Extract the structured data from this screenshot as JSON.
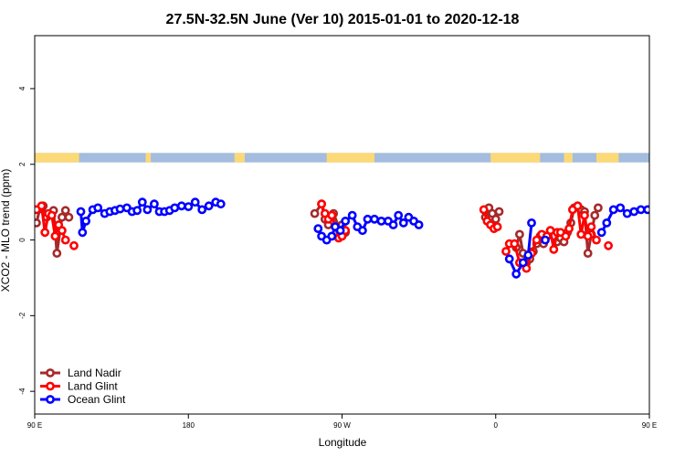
{
  "chart_data": {
    "type": "line",
    "title": "27.5N-32.5N June (Ver 10)   2015-01-01 to 2020-12-18",
    "xlabel": "Longitude",
    "ylabel": "XCO2 - MLO trend (ppm)",
    "xlim": [
      90,
      450
    ],
    "ylim": [
      -4.6,
      5.4
    ],
    "x_ticks": [
      {
        "value": 90,
        "label": "90 E"
      },
      {
        "value": 180,
        "label": "180"
      },
      {
        "value": 270,
        "label": "90 W"
      },
      {
        "value": 360,
        "label": "0"
      },
      {
        "value": 450,
        "label": "90 E"
      },
      {
        "value": 540,
        "label": "180"
      }
    ],
    "y_ticks": [
      {
        "value": -4,
        "label": "-4"
      },
      {
        "value": -2,
        "label": "-2"
      },
      {
        "value": 0,
        "label": "0"
      },
      {
        "value": 2,
        "label": "2"
      },
      {
        "value": 4,
        "label": "4"
      }
    ],
    "grid": false,
    "legend_position": "bottom-left",
    "legend": [
      "Land Nadir",
      "Land Glint",
      "Ocean Glint"
    ],
    "colors": {
      "land_nadir": "#a52a2a",
      "land_glint": "#ff0000",
      "ocean_glint": "#0000ff",
      "strip_ocean": "#a4bcde",
      "strip_land": "#fbd977"
    },
    "landmask_strip": {
      "y_range": [
        2.05,
        2.3
      ],
      "land_segments": [
        [
          90,
          116
        ],
        [
          155,
          158
        ],
        [
          207,
          213
        ],
        [
          261,
          289
        ],
        [
          357,
          386
        ],
        [
          400,
          405
        ],
        [
          419,
          432
        ],
        [
          523,
          546
        ]
      ]
    },
    "series": [
      {
        "name": "Land Nadir",
        "color": "#a52a2a",
        "segments": [
          [
            [
              91,
              0.45
            ],
            [
              93,
              0.82
            ],
            [
              95,
              0.9
            ],
            [
              97,
              0.6
            ],
            [
              99,
              0.7
            ],
            [
              101,
              0.78
            ],
            [
              103,
              -0.35
            ],
            [
              106,
              0.6
            ],
            [
              108,
              0.78
            ],
            [
              110,
              0.6
            ]
          ],
          [
            [
              254,
              0.7
            ],
            [
              258,
              0.95
            ],
            [
              260,
              0.55
            ],
            [
              262,
              0.4
            ],
            [
              265,
              0.7
            ],
            [
              268,
              0.35
            ],
            [
              270,
              0.4
            ],
            [
              272,
              0.2
            ]
          ],
          [
            [
              354,
              0.6
            ],
            [
              356,
              0.85
            ],
            [
              358,
              0.7
            ],
            [
              360,
              0.55
            ],
            [
              362,
              0.75
            ]
          ],
          [
            [
              372,
              -0.2
            ],
            [
              374,
              0.15
            ],
            [
              376,
              -0.35
            ],
            [
              378,
              -0.6
            ],
            [
              380,
              -0.5
            ],
            [
              382,
              -0.3
            ],
            [
              384,
              -0.1
            ],
            [
              386,
              0.1
            ],
            [
              388,
              -0.1
            ],
            [
              390,
              0.1
            ],
            [
              392,
              0.25
            ],
            [
              394,
              0.1
            ],
            [
              396,
              -0.05
            ],
            [
              398,
              0.05
            ],
            [
              400,
              -0.05
            ],
            [
              402,
              0.2
            ],
            [
              404,
              0.45
            ],
            [
              406,
              0.85
            ],
            [
              408,
              0.9
            ],
            [
              410,
              0.8
            ],
            [
              412,
              0.75
            ],
            [
              414,
              -0.35
            ],
            [
              416,
              0.15
            ],
            [
              418,
              0.65
            ],
            [
              420,
              0.85
            ]
          ]
        ]
      },
      {
        "name": "Land Glint",
        "color": "#ff0000",
        "segments": [
          [
            [
              91,
              0.8
            ],
            [
              94,
              0.9
            ],
            [
              96,
              0.2
            ],
            [
              98,
              0.7
            ],
            [
              100,
              0.65
            ],
            [
              102,
              0.1
            ],
            [
              104,
              0.4
            ],
            [
              106,
              0.25
            ],
            [
              108,
              0.0
            ]
          ],
          [
            [
              113,
              -0.15
            ]
          ],
          [
            [
              258,
              0.95
            ],
            [
              260,
              0.7
            ],
            [
              262,
              0.55
            ],
            [
              264,
              0.65
            ],
            [
              268,
              0.05
            ],
            [
              270,
              0.1
            ],
            [
              272,
              0.25
            ]
          ],
          [
            [
              353,
              0.8
            ],
            [
              355,
              0.5
            ],
            [
              357,
              0.4
            ],
            [
              359,
              0.3
            ],
            [
              361,
              0.35
            ]
          ],
          [
            [
              366,
              -0.3
            ],
            [
              368,
              -0.1
            ],
            [
              371,
              -0.1
            ],
            [
              374,
              -0.6
            ],
            [
              378,
              -0.75
            ],
            [
              381,
              -0.35
            ],
            [
              384,
              0.0
            ],
            [
              387,
              0.15
            ],
            [
              390,
              0.1
            ],
            [
              392,
              0.25
            ],
            [
              394,
              -0.25
            ],
            [
              396,
              0.2
            ],
            [
              398,
              0.2
            ],
            [
              401,
              0.1
            ],
            [
              403,
              0.3
            ],
            [
              405,
              0.8
            ],
            [
              408,
              0.9
            ],
            [
              410,
              0.15
            ],
            [
              412,
              0.65
            ],
            [
              414,
              0.1
            ],
            [
              416,
              0.35
            ],
            [
              419,
              0.0
            ]
          ],
          [
            [
              426,
              -0.15
            ]
          ]
        ]
      },
      {
        "name": "Ocean Glint",
        "color": "#0000ff",
        "segments": [
          [
            [
              117,
              0.75
            ],
            [
              118,
              0.2
            ],
            [
              120,
              0.5
            ],
            [
              124,
              0.8
            ],
            [
              127,
              0.85
            ],
            [
              131,
              0.7
            ],
            [
              134,
              0.75
            ],
            [
              137,
              0.78
            ],
            [
              140,
              0.82
            ],
            [
              144,
              0.85
            ],
            [
              147,
              0.75
            ],
            [
              150,
              0.78
            ],
            [
              153,
              1.0
            ],
            [
              156,
              0.8
            ],
            [
              160,
              0.95
            ],
            [
              163,
              0.75
            ],
            [
              166,
              0.75
            ],
            [
              169,
              0.78
            ],
            [
              172,
              0.85
            ],
            [
              176,
              0.9
            ],
            [
              180,
              0.88
            ],
            [
              184,
              1.0
            ],
            [
              188,
              0.8
            ],
            [
              192,
              0.9
            ],
            [
              196,
              1.0
            ],
            [
              199,
              0.95
            ]
          ],
          [
            [
              256,
              0.3
            ],
            [
              258,
              0.1
            ],
            [
              261,
              0.0
            ],
            [
              264,
              0.1
            ],
            [
              266,
              0.35
            ],
            [
              269,
              0.25
            ],
            [
              272,
              0.5
            ],
            [
              276,
              0.65
            ],
            [
              279,
              0.35
            ],
            [
              282,
              0.25
            ],
            [
              285,
              0.55
            ],
            [
              289,
              0.55
            ],
            [
              293,
              0.5
            ],
            [
              297,
              0.5
            ],
            [
              300,
              0.4
            ],
            [
              303,
              0.65
            ],
            [
              306,
              0.45
            ],
            [
              309,
              0.6
            ],
            [
              312,
              0.5
            ],
            [
              315,
              0.4
            ]
          ],
          [
            [
              368,
              -0.5
            ],
            [
              372,
              -0.9
            ],
            [
              376,
              -0.6
            ],
            [
              379,
              -0.4
            ],
            [
              381,
              0.45
            ]
          ],
          [
            [
              389,
              0.0
            ]
          ],
          [
            [
              422,
              0.2
            ],
            [
              425,
              0.45
            ],
            [
              429,
              0.8
            ],
            [
              433,
              0.85
            ],
            [
              437,
              0.7
            ],
            [
              441,
              0.75
            ],
            [
              445,
              0.8
            ],
            [
              449,
              0.8
            ],
            [
              453,
              0.85
            ],
            [
              457,
              0.78
            ],
            [
              461,
              0.8
            ]
          ]
        ]
      }
    ]
  }
}
